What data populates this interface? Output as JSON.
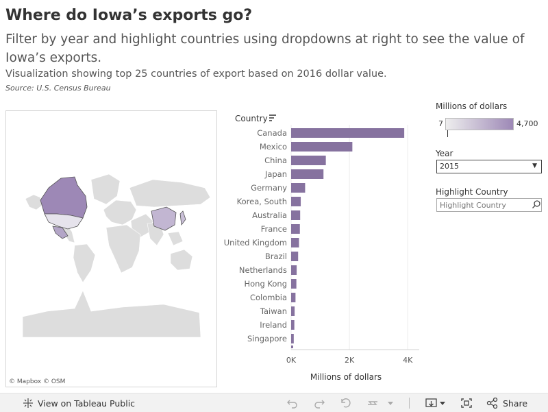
{
  "header": {
    "title": "Where do Iowa’s exports go?",
    "subtitle": "Filter by year and highlight countries using dropdowns at right to see the value of Iowa’s exports.",
    "description": "Visualization showing top 25 countries of export based on 2016 dollar value.",
    "source": "Source: U.S. Census Bureau"
  },
  "map": {
    "credits": "© Mapbox  © OSM"
  },
  "legend": {
    "title": "Millions of dollars",
    "min_label": "7",
    "max_label": "4,700",
    "color_low": "#eeeeee",
    "color_high": "#9d88b6"
  },
  "filters": {
    "year_label": "Year",
    "year_value": "2015",
    "highlight_label": "Highlight Country",
    "highlight_placeholder": "Highlight Country"
  },
  "chart_data": {
    "type": "bar",
    "orientation": "horizontal",
    "category_header": "Country",
    "xlabel": "Millions of dollars",
    "ticks": [
      "0K",
      "2K",
      "4K"
    ],
    "tick_values": [
      0,
      2000,
      4000
    ],
    "xlim": [
      0,
      4300
    ],
    "bar_color": "#86729f",
    "categories": [
      "Canada",
      "Mexico",
      "China",
      "Japan",
      "Germany",
      "Korea, South",
      "Australia",
      "France",
      "United Kingdom",
      "Brazil",
      "Netherlands",
      "Hong Kong",
      "Colombia",
      "Taiwan",
      "Ireland",
      "Singapore"
    ],
    "values": [
      3880,
      2100,
      1190,
      1110,
      480,
      330,
      310,
      300,
      270,
      240,
      190,
      180,
      150,
      120,
      110,
      90
    ]
  },
  "toolbar": {
    "view_label": "View on Tableau Public",
    "share_label": "Share"
  }
}
